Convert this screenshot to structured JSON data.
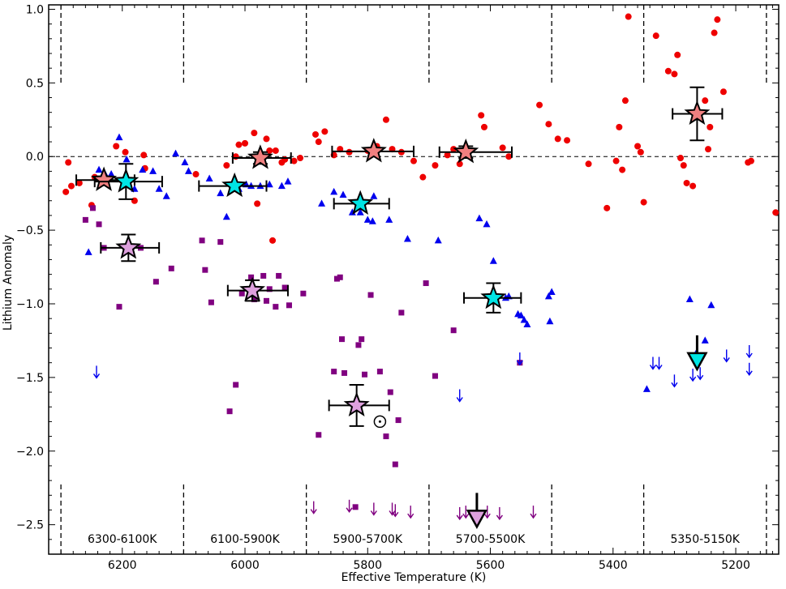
{
  "chart_data": {
    "type": "scatter",
    "title": "",
    "xlabel": "Effective Temperature (K)",
    "ylabel": "Lithium Anomaly",
    "xlim": [
      6320,
      5130
    ],
    "ylim": [
      -2.7,
      1.03
    ],
    "x_ticks": [
      6200,
      6000,
      5800,
      5600,
      5400,
      5200
    ],
    "y_ticks": [
      1.0,
      0.5,
      0.0,
      -0.5,
      -1.0,
      -1.5,
      -2.0,
      -2.5
    ],
    "y_tick_labels": [
      "1.0",
      "0.5",
      "0.0",
      "−0.5",
      "−1.0",
      "−1.5",
      "−2.0",
      "−2.5"
    ],
    "colors": {
      "red": "#ee0000",
      "blue": "#0000ee",
      "purple": "#800080",
      "salmon": "#f08080",
      "cyan": "#00e5e5",
      "pink": "#dda0dd"
    },
    "bin_edges": [
      6300,
      6100,
      5900,
      5700,
      5500,
      5350,
      5150
    ],
    "bin_labels": [
      {
        "label": "6300-6100K",
        "x": 6200
      },
      {
        "label": "6100-5900K",
        "x": 6000
      },
      {
        "label": "5900-5700K",
        "x": 5800
      },
      {
        "label": "5700-5500K",
        "x": 5600
      },
      {
        "label": "5350-5150K",
        "x": 5250
      }
    ],
    "red_circles": [
      [
        6292,
        -0.24
      ],
      [
        6288,
        -0.04
      ],
      [
        6283,
        -0.2
      ],
      [
        6270,
        -0.18
      ],
      [
        6250,
        -0.33
      ],
      [
        6245,
        -0.14
      ],
      [
        6230,
        -0.13
      ],
      [
        6210,
        0.07
      ],
      [
        6195,
        0.03
      ],
      [
        6180,
        -0.3
      ],
      [
        6165,
        0.01
      ],
      [
        6163,
        -0.08
      ],
      [
        6080,
        -0.12
      ],
      [
        6030,
        -0.06
      ],
      [
        6015,
        0.0
      ],
      [
        6010,
        0.08
      ],
      [
        6000,
        0.09
      ],
      [
        5985,
        0.16
      ],
      [
        5980,
        -0.32
      ],
      [
        5975,
        0.02
      ],
      [
        5965,
        0.12
      ],
      [
        5960,
        0.04
      ],
      [
        5955,
        -0.57
      ],
      [
        5950,
        0.04
      ],
      [
        5940,
        -0.04
      ],
      [
        5935,
        -0.02
      ],
      [
        5920,
        -0.03
      ],
      [
        5910,
        -0.01
      ],
      [
        5885,
        0.15
      ],
      [
        5880,
        0.1
      ],
      [
        5870,
        0.17
      ],
      [
        5855,
        0.01
      ],
      [
        5845,
        0.05
      ],
      [
        5830,
        0.03
      ],
      [
        5800,
        0.04
      ],
      [
        5785,
        0.07
      ],
      [
        5770,
        0.25
      ],
      [
        5760,
        0.05
      ],
      [
        5745,
        0.03
      ],
      [
        5725,
        -0.03
      ],
      [
        5710,
        -0.14
      ],
      [
        5690,
        -0.06
      ],
      [
        5670,
        0.01
      ],
      [
        5660,
        0.05
      ],
      [
        5650,
        -0.05
      ],
      [
        5640,
        0.05
      ],
      [
        5615,
        0.28
      ],
      [
        5610,
        0.2
      ],
      [
        5580,
        0.06
      ],
      [
        5570,
        0.0
      ],
      [
        5520,
        0.35
      ],
      [
        5505,
        0.22
      ],
      [
        5490,
        0.12
      ],
      [
        5475,
        0.11
      ],
      [
        5440,
        -0.05
      ],
      [
        5410,
        -0.35
      ],
      [
        5395,
        -0.03
      ],
      [
        5390,
        0.2
      ],
      [
        5385,
        -0.09
      ],
      [
        5380,
        0.38
      ],
      [
        5375,
        0.95
      ],
      [
        5360,
        0.07
      ],
      [
        5355,
        0.03
      ],
      [
        5350,
        -0.31
      ],
      [
        5330,
        0.82
      ],
      [
        5310,
        0.58
      ],
      [
        5300,
        0.56
      ],
      [
        5295,
        0.69
      ],
      [
        5290,
        -0.01
      ],
      [
        5285,
        -0.06
      ],
      [
        5280,
        -0.18
      ],
      [
        5270,
        -0.2
      ],
      [
        5260,
        0.29
      ],
      [
        5250,
        0.38
      ],
      [
        5245,
        0.05
      ],
      [
        5242,
        0.2
      ],
      [
        5235,
        0.84
      ],
      [
        5230,
        0.93
      ],
      [
        5220,
        0.44
      ],
      [
        5180,
        -0.04
      ],
      [
        5175,
        -0.03
      ],
      [
        5135,
        -0.38
      ]
    ],
    "blue_triangles": [
      [
        6255,
        -0.65
      ],
      [
        6238,
        -0.09
      ],
      [
        6228,
        -0.12
      ],
      [
        6218,
        -0.12
      ],
      [
        6205,
        0.13
      ],
      [
        6193,
        -0.02
      ],
      [
        6180,
        -0.22
      ],
      [
        6167,
        -0.09
      ],
      [
        6150,
        -0.1
      ],
      [
        6140,
        -0.22
      ],
      [
        6128,
        -0.27
      ],
      [
        6113,
        0.02
      ],
      [
        6098,
        -0.04
      ],
      [
        6092,
        -0.1
      ],
      [
        6058,
        -0.15
      ],
      [
        6040,
        -0.25
      ],
      [
        6030,
        -0.41
      ],
      [
        6010,
        -0.22
      ],
      [
        5998,
        -0.19
      ],
      [
        5990,
        -0.2
      ],
      [
        5975,
        -0.2
      ],
      [
        5960,
        -0.19
      ],
      [
        5940,
        -0.2
      ],
      [
        5930,
        -0.17
      ],
      [
        5875,
        -0.32
      ],
      [
        5855,
        -0.24
      ],
      [
        5840,
        -0.26
      ],
      [
        5825,
        -0.38
      ],
      [
        5812,
        -0.38
      ],
      [
        5800,
        -0.43
      ],
      [
        5792,
        -0.44
      ],
      [
        5790,
        -0.27
      ],
      [
        5765,
        -0.43
      ],
      [
        5735,
        -0.56
      ],
      [
        5685,
        -0.57
      ],
      [
        5618,
        -0.42
      ],
      [
        5606,
        -0.46
      ],
      [
        5595,
        -0.71
      ],
      [
        5575,
        -0.96
      ],
      [
        5570,
        -0.95
      ],
      [
        5555,
        -1.07
      ],
      [
        5550,
        -1.08
      ],
      [
        5545,
        -1.11
      ],
      [
        5540,
        -1.14
      ],
      [
        5505,
        -0.95
      ],
      [
        5503,
        -1.12
      ],
      [
        5500,
        -0.92
      ],
      [
        5345,
        -1.58
      ],
      [
        5275,
        -0.97
      ],
      [
        5265,
        -1.34
      ],
      [
        5250,
        -1.25
      ],
      [
        5240,
        -1.01
      ]
    ],
    "purple_squares": [
      [
        6260,
        -0.43
      ],
      [
        6248,
        -0.35
      ],
      [
        6238,
        -0.46
      ],
      [
        6230,
        -0.62
      ],
      [
        6205,
        -1.02
      ],
      [
        6170,
        -0.62
      ],
      [
        6145,
        -0.85
      ],
      [
        6120,
        -0.76
      ],
      [
        6070,
        -0.57
      ],
      [
        6065,
        -0.77
      ],
      [
        6055,
        -0.99
      ],
      [
        6040,
        -0.58
      ],
      [
        6025,
        -1.73
      ],
      [
        6015,
        -1.55
      ],
      [
        6005,
        -0.93
      ],
      [
        5990,
        -0.82
      ],
      [
        5985,
        -0.97
      ],
      [
        5970,
        -0.81
      ],
      [
        5965,
        -0.98
      ],
      [
        5960,
        -0.9
      ],
      [
        5950,
        -1.02
      ],
      [
        5945,
        -0.81
      ],
      [
        5935,
        -0.89
      ],
      [
        5928,
        -1.01
      ],
      [
        5905,
        -0.93
      ],
      [
        5880,
        -1.89
      ],
      [
        5855,
        -1.46
      ],
      [
        5850,
        -0.83
      ],
      [
        5845,
        -0.82
      ],
      [
        5842,
        -1.24
      ],
      [
        5838,
        -1.47
      ],
      [
        5820,
        -2.38
      ],
      [
        5815,
        -1.28
      ],
      [
        5810,
        -1.24
      ],
      [
        5805,
        -1.48
      ],
      [
        5795,
        -0.94
      ],
      [
        5780,
        -1.46
      ],
      [
        5770,
        -1.9
      ],
      [
        5763,
        -1.6
      ],
      [
        5755,
        -2.09
      ],
      [
        5750,
        -1.79
      ],
      [
        5745,
        -1.06
      ],
      [
        5705,
        -0.86
      ],
      [
        5690,
        -1.49
      ],
      [
        5660,
        -1.18
      ],
      [
        5552,
        -1.4
      ]
    ],
    "blue_upper_limits": [
      [
        6242,
        -1.47
      ],
      [
        5650,
        -1.63
      ],
      [
        5552,
        -1.38
      ],
      [
        5335,
        -1.41
      ],
      [
        5325,
        -1.41
      ],
      [
        5300,
        -1.53
      ],
      [
        5270,
        -1.49
      ],
      [
        5258,
        -1.48
      ],
      [
        5215,
        -1.36
      ],
      [
        5178,
        -1.33
      ],
      [
        5178,
        -1.45
      ]
    ],
    "purple_upper_limits": [
      [
        5888,
        -2.39
      ],
      [
        5830,
        -2.38
      ],
      [
        5790,
        -2.4
      ],
      [
        5760,
        -2.4
      ],
      [
        5755,
        -2.41
      ],
      [
        5730,
        -2.42
      ],
      [
        5650,
        -2.43
      ],
      [
        5640,
        -2.42
      ],
      [
        5605,
        -2.42
      ],
      [
        5585,
        -2.43
      ],
      [
        5530,
        -2.42
      ]
    ],
    "open_circle": [
      5780,
      -1.8
    ],
    "bin_means": {
      "red": [
        {
          "x": 6230,
          "y": -0.16,
          "xerr_lo": 6275,
          "xerr_hi": 6180,
          "yerr": 0.0
        },
        {
          "x": 5975,
          "y": -0.01,
          "xerr_lo": 6020,
          "xerr_hi": 5925,
          "yerr": 0.04
        },
        {
          "x": 5790,
          "y": 0.035,
          "xerr_lo": 5858,
          "xerr_hi": 5725,
          "yerr": 0.0
        },
        {
          "x": 5640,
          "y": 0.03,
          "xerr_lo": 5683,
          "xerr_hi": 5565,
          "yerr": 0.04
        },
        {
          "x": 5263,
          "y": 0.29,
          "xerr_lo": 5303,
          "xerr_hi": 5222,
          "yerr": 0.18
        }
      ],
      "cyan": [
        {
          "x": 6194,
          "y": -0.17,
          "xerr_lo": 6245,
          "xerr_hi": 6135,
          "yerr": 0.12
        },
        {
          "x": 6017,
          "y": -0.2,
          "xerr_lo": 6075,
          "xerr_hi": 5965,
          "yerr": 0.0
        },
        {
          "x": 5812,
          "y": -0.32,
          "xerr_lo": 5855,
          "xerr_hi": 5765,
          "yerr": 0.0
        },
        {
          "x": 5595,
          "y": -0.96,
          "xerr_lo": 5643,
          "xerr_hi": 5550,
          "yerr": 0.1
        }
      ],
      "pink": [
        {
          "x": 6190,
          "y": -0.62,
          "xerr_lo": 6235,
          "xerr_hi": 6140,
          "yerr": 0.09
        },
        {
          "x": 5988,
          "y": -0.91,
          "xerr_lo": 6028,
          "xerr_hi": 5930,
          "yerr": 0.07
        },
        {
          "x": 5818,
          "y": -1.69,
          "xerr_lo": 5863,
          "xerr_hi": 5765,
          "yerr": 0.14
        }
      ]
    },
    "big_limit_markers": [
      {
        "x": 5263,
        "y": -1.39,
        "color": "cyan"
      },
      {
        "x": 5622,
        "y": -2.46,
        "color": "pink"
      }
    ]
  }
}
